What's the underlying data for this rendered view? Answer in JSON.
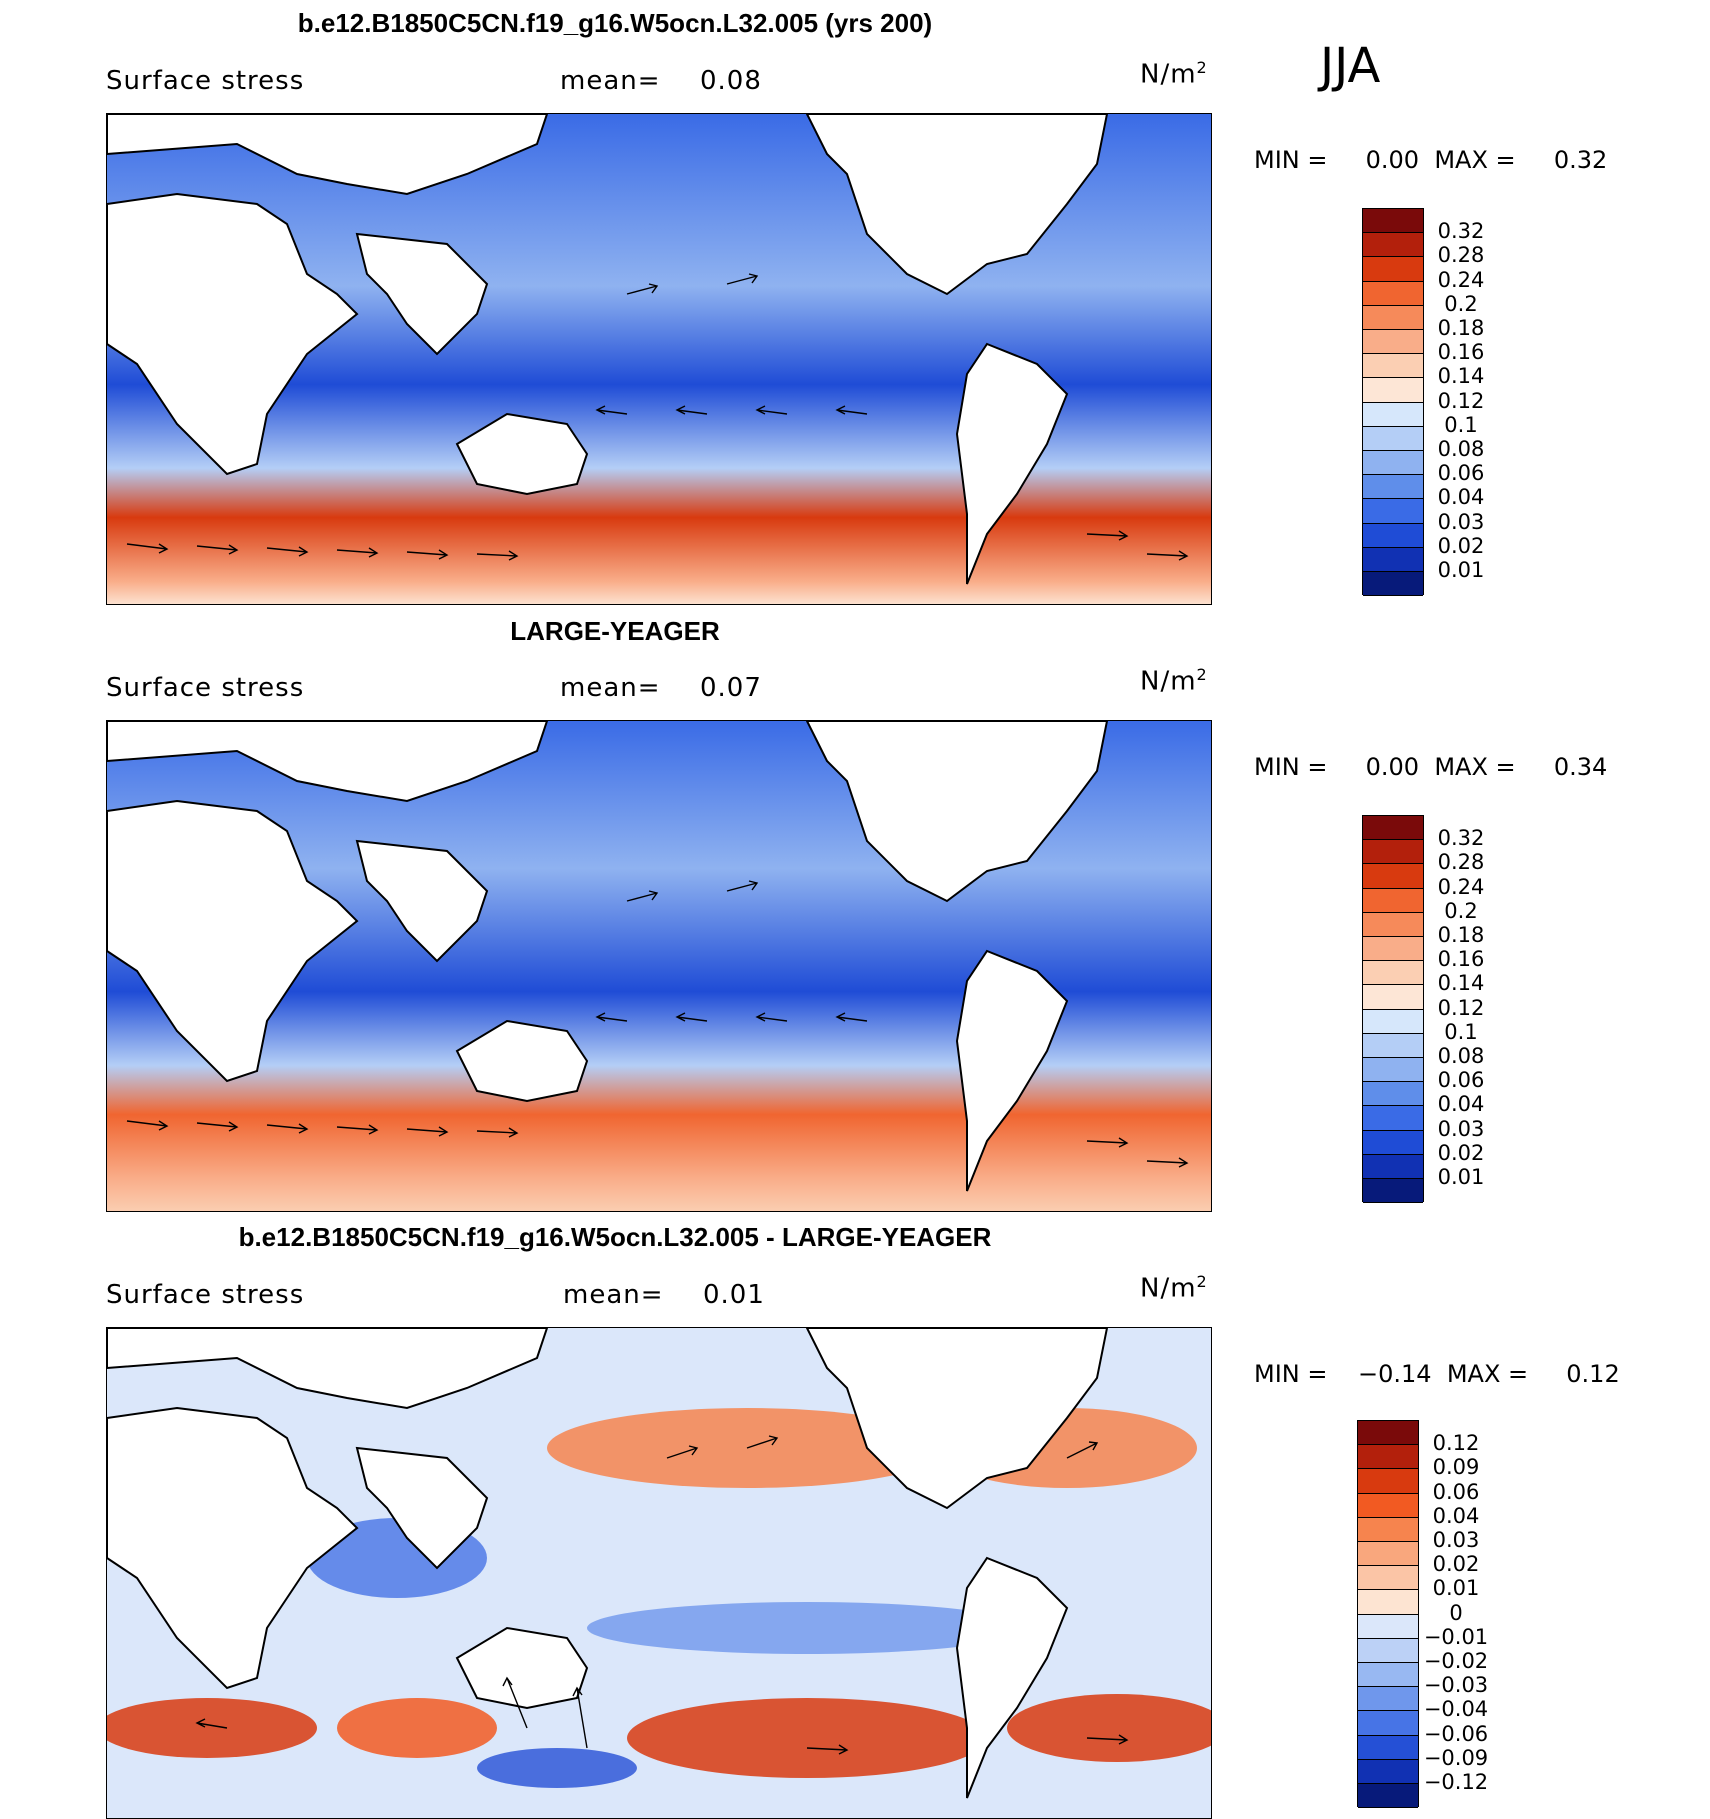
{
  "season": "JJA",
  "panels": [
    {
      "title": "b.e12.B1850C5CN.f19_g16.W5ocn.L32.005 (yrs 200)",
      "variable": "Surface stress",
      "mean_label": "mean=",
      "mean_value": "0.08",
      "units": "N/m",
      "units_exp": "2",
      "min_label": "MIN =",
      "min_value": "0.00",
      "max_label": "MAX =",
      "max_value": "0.32",
      "colorbar": {
        "labels": [
          "0.32",
          "0.28",
          "0.24",
          "0.2",
          "0.18",
          "0.16",
          "0.14",
          "0.12",
          "0.1",
          "0.08",
          "0.06",
          "0.04",
          "0.03",
          "0.02",
          "0.01"
        ],
        "colors": [
          "#7a0a0a",
          "#b3200c",
          "#d83a0f",
          "#f06530",
          "#f68a5a",
          "#f9ad89",
          "#fbcfb3",
          "#fde6d6",
          "#d6e7fb",
          "#b4cef6",
          "#8fb2f0",
          "#5f8eea",
          "#3a6be6",
          "#1f4cd6",
          "#1131b3",
          "#071a7a"
        ]
      }
    },
    {
      "title": "LARGE-YEAGER",
      "variable": "Surface stress",
      "mean_label": "mean=",
      "mean_value": "0.07",
      "units": "N/m",
      "units_exp": "2",
      "min_label": "MIN =",
      "min_value": "0.00",
      "max_label": "MAX =",
      "max_value": "0.34",
      "colorbar": {
        "labels": [
          "0.32",
          "0.28",
          "0.24",
          "0.2",
          "0.18",
          "0.16",
          "0.14",
          "0.12",
          "0.1",
          "0.08",
          "0.06",
          "0.04",
          "0.03",
          "0.02",
          "0.01"
        ],
        "colors": [
          "#7a0a0a",
          "#b3200c",
          "#d83a0f",
          "#f06530",
          "#f68a5a",
          "#f9ad89",
          "#fbcfb3",
          "#fde6d6",
          "#d6e7fb",
          "#b4cef6",
          "#8fb2f0",
          "#5f8eea",
          "#3a6be6",
          "#1f4cd6",
          "#1131b3",
          "#071a7a"
        ]
      }
    },
    {
      "title": "b.e12.B1850C5CN.f19_g16.W5ocn.L32.005 - LARGE-YEAGER",
      "variable": "Surface stress",
      "mean_label": "mean=",
      "mean_value": "0.01",
      "units": "N/m",
      "units_exp": "2",
      "min_label": "MIN =",
      "min_value": "−0.14",
      "max_label": "MAX =",
      "max_value": "0.12",
      "colorbar": {
        "labels": [
          "0.12",
          "0.09",
          "0.06",
          "0.04",
          "0.03",
          "0.02",
          "0.01",
          "0",
          "−0.01",
          "−0.02",
          "−0.03",
          "−0.04",
          "−0.06",
          "−0.09",
          "−0.12"
        ],
        "colors": [
          "#7a0a0a",
          "#b3200c",
          "#d83a0f",
          "#f25a22",
          "#f6844e",
          "#f9a77d",
          "#fbc5a6",
          "#fde4d2",
          "#dbe7fa",
          "#bcd1f6",
          "#98b8f2",
          "#6f97ec",
          "#4774e6",
          "#2550d6",
          "#1131b3",
          "#071a7a"
        ]
      }
    }
  ]
}
